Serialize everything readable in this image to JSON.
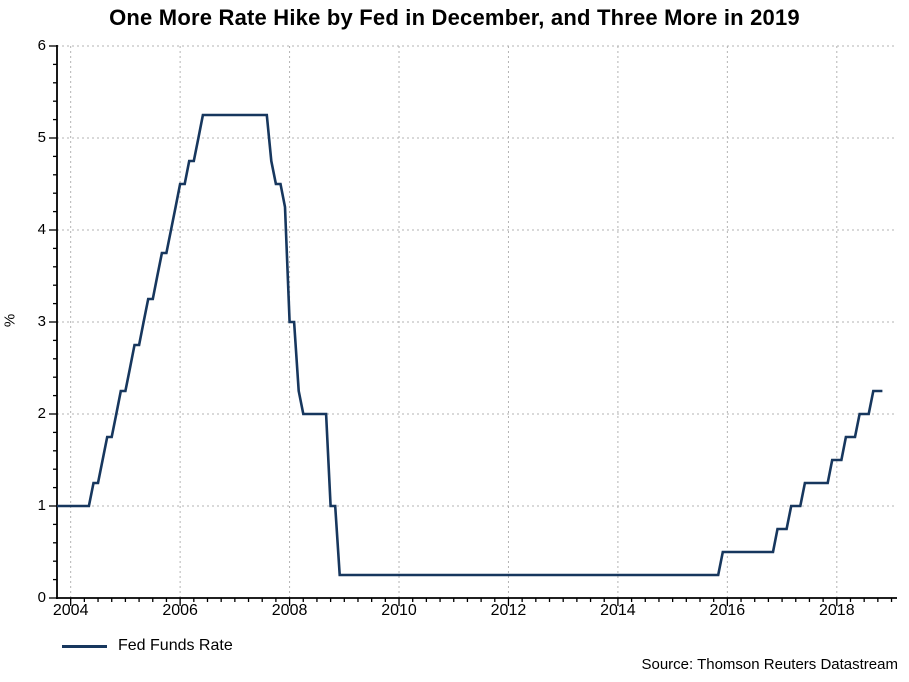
{
  "title": "One More Rate Hike by Fed in December, and Three More in 2019",
  "source": "Source: Thomson Reuters Datastream",
  "colors": {
    "line": "#17375e",
    "grid": "#b3b3b3",
    "axis": "#000000",
    "text": "#000000",
    "background": "#ffffff"
  },
  "legend": [
    {
      "label": "Fed Funds Rate",
      "color": "#17375e"
    }
  ],
  "chart_data": {
    "type": "line",
    "title": "One More Rate Hike by Fed in December, and Three More in 2019",
    "xlabel": "",
    "ylabel": "%",
    "xlim": [
      2003.75,
      2019.1
    ],
    "ylim": [
      0,
      6
    ],
    "xticks_major": [
      2004,
      2006,
      2008,
      2010,
      2012,
      2014,
      2016,
      2018
    ],
    "xtick_labels": [
      "2004",
      "2006",
      "2008",
      "2010",
      "2012",
      "2014",
      "2016",
      "2018"
    ],
    "x_minor_step": 0.25,
    "yticks_major": [
      0,
      1,
      2,
      3,
      4,
      5,
      6
    ],
    "ytick_labels": [
      "0",
      "1",
      "2",
      "3",
      "4",
      "5",
      "6"
    ],
    "y_minor_step": 0.2,
    "grid": "dotted",
    "legend_position": "bottom-left",
    "series": [
      {
        "name": "Fed Funds Rate",
        "color": "#17375e",
        "frequency": "monthly",
        "start": "2003-10",
        "end": "2018-11",
        "step_changes": [
          [
            "2003-10",
            1.0
          ],
          [
            "2004-06",
            1.25
          ],
          [
            "2004-08",
            1.5
          ],
          [
            "2004-09",
            1.75
          ],
          [
            "2004-11",
            2.0
          ],
          [
            "2004-12",
            2.25
          ],
          [
            "2005-02",
            2.5
          ],
          [
            "2005-03",
            2.75
          ],
          [
            "2005-05",
            3.0
          ],
          [
            "2005-06",
            3.25
          ],
          [
            "2005-08",
            3.5
          ],
          [
            "2005-09",
            3.75
          ],
          [
            "2005-11",
            4.0
          ],
          [
            "2005-12",
            4.25
          ],
          [
            "2006-01",
            4.5
          ],
          [
            "2006-03",
            4.75
          ],
          [
            "2006-05",
            5.0
          ],
          [
            "2006-06",
            5.25
          ],
          [
            "2007-09",
            4.75
          ],
          [
            "2007-10",
            4.5
          ],
          [
            "2007-12",
            4.25
          ],
          [
            "2008-01",
            3.0
          ],
          [
            "2008-03",
            2.25
          ],
          [
            "2008-04",
            2.0
          ],
          [
            "2008-10",
            1.0
          ],
          [
            "2008-12",
            0.25
          ],
          [
            "2015-12",
            0.5
          ],
          [
            "2016-12",
            0.75
          ],
          [
            "2017-03",
            1.0
          ],
          [
            "2017-06",
            1.25
          ],
          [
            "2017-12",
            1.5
          ],
          [
            "2018-03",
            1.75
          ],
          [
            "2018-06",
            2.0
          ],
          [
            "2018-09",
            2.25
          ]
        ]
      }
    ]
  }
}
